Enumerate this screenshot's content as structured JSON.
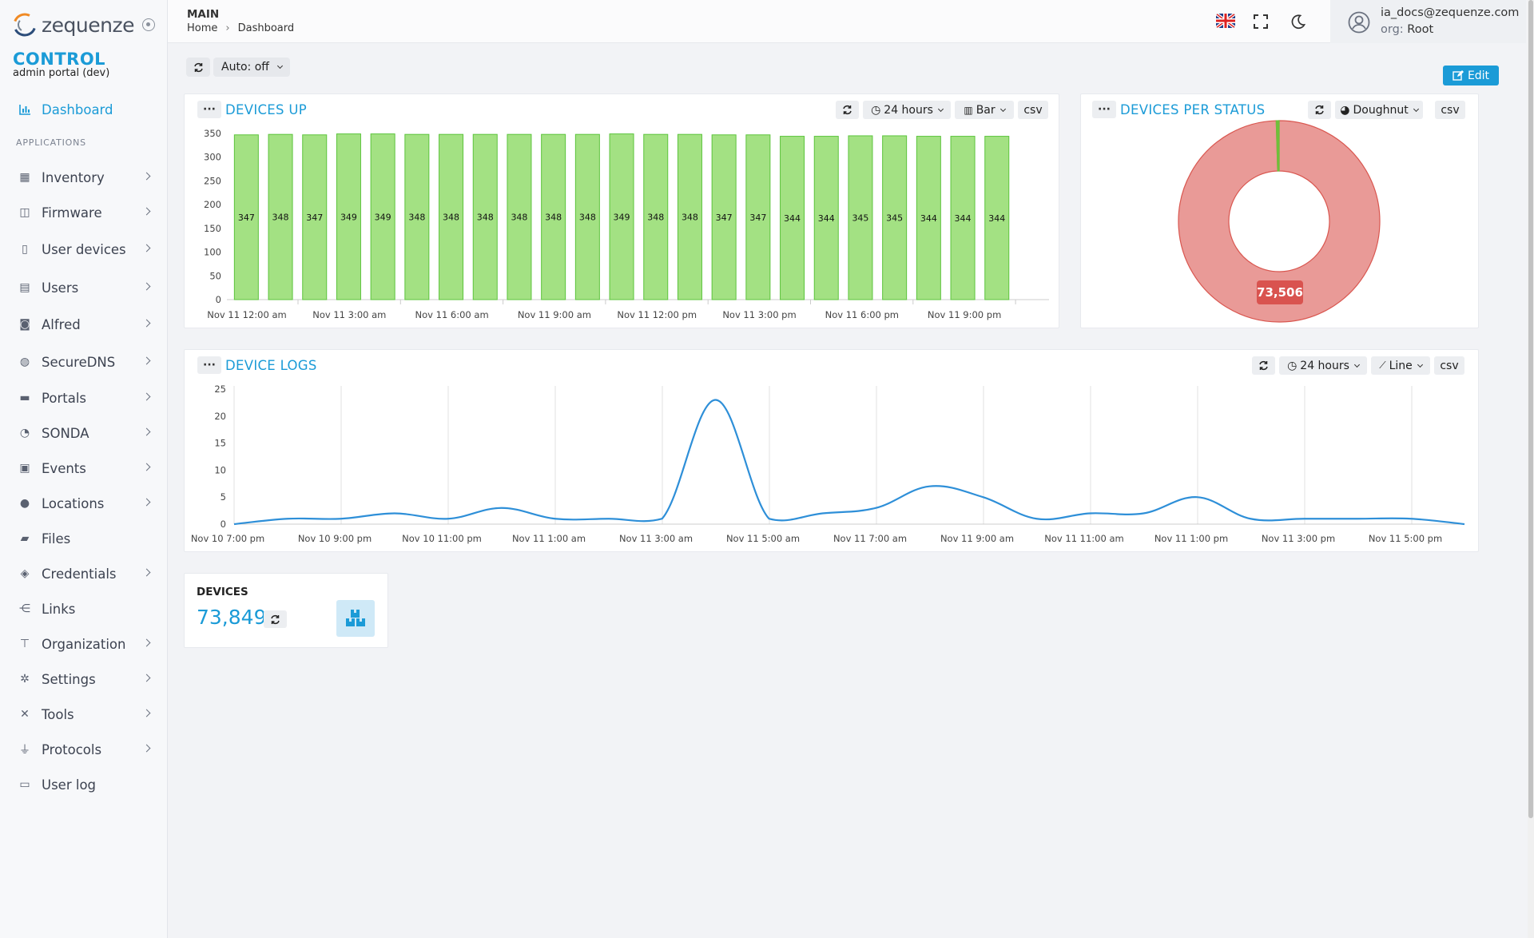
{
  "app": {
    "logo_text": "zequenze",
    "title": "CONTROL",
    "subtitle": "admin portal (dev)"
  },
  "sidebar": {
    "dashboard_label": "Dashboard",
    "section_label": "APPLICATIONS",
    "items": [
      {
        "label": "Inventory",
        "icon": "boxes-icon",
        "chevron": true
      },
      {
        "label": "Firmware",
        "icon": "box-open-icon",
        "chevron": true
      },
      {
        "label": "User devices",
        "icon": "mobile-icon",
        "chevron": true
      },
      {
        "label": "Users",
        "icon": "id-card-icon",
        "chevron": true
      },
      {
        "label": "Alfred",
        "icon": "robot-icon",
        "chevron": true
      },
      {
        "label": "SecureDNS",
        "icon": "globe-icon",
        "chevron": true
      },
      {
        "label": "Portals",
        "icon": "window-icon",
        "chevron": true
      },
      {
        "label": "SONDA",
        "icon": "gauge-icon",
        "chevron": true
      },
      {
        "label": "Events",
        "icon": "calendar-note-icon",
        "chevron": true
      },
      {
        "label": "Locations",
        "icon": "map-marker-icon",
        "chevron": true
      },
      {
        "label": "Files",
        "icon": "folder-icon",
        "chevron": false
      },
      {
        "label": "Credentials",
        "icon": "shield-icon",
        "chevron": true
      },
      {
        "label": "Links",
        "icon": "share-nodes-icon",
        "chevron": false
      },
      {
        "label": "Organization",
        "icon": "sitemap-icon",
        "chevron": true
      },
      {
        "label": "Settings",
        "icon": "gears-icon",
        "chevron": true
      },
      {
        "label": "Tools",
        "icon": "tools-icon",
        "chevron": true
      },
      {
        "label": "Protocols",
        "icon": "plug-icon",
        "chevron": true
      },
      {
        "label": "User log",
        "icon": "calendar-icon",
        "chevron": false
      }
    ]
  },
  "topbar": {
    "section": "MAIN",
    "breadcrumb": [
      "Home",
      "Dashboard"
    ],
    "breadcrumb_sep": "›",
    "user_email": "ia_docs@zequenze.com",
    "org_prefix": "org:",
    "org_name": "Root"
  },
  "toolbar": {
    "auto_label": "Auto: off",
    "edit_label": "Edit"
  },
  "widgets": {
    "devices_up": {
      "title": "DEVICES UP",
      "range": "24 hours",
      "type": "Bar",
      "csv": "csv"
    },
    "devices_status": {
      "title": "DEVICES PER STATUS",
      "type": "Doughnut",
      "csv": "csv"
    },
    "device_logs": {
      "title": "DEVICE LOGS",
      "range": "24 hours",
      "type": "Line",
      "csv": "csv"
    },
    "devices": {
      "label": "DEVICES",
      "value": "73,849"
    }
  },
  "colors": {
    "accent": "#1b9bd7",
    "bar_fill": "#a3e183",
    "bar_stroke": "#5cc43c",
    "doughnut_main": "#e99a97",
    "doughnut_border": "#d95750",
    "doughnut_minor": "#6fbf3a",
    "line": "#2e8fd8",
    "label_bg": "#d9534f"
  },
  "chart_data": [
    {
      "type": "bar",
      "title": "DEVICES UP",
      "x_tick_labels": [
        "Nov 11 12:00 am",
        "Nov 11 3:00 am",
        "Nov 11 6:00 am",
        "Nov 11 9:00 am",
        "Nov 11 12:00 pm",
        "Nov 11 3:00 pm",
        "Nov 11 6:00 pm",
        "Nov 11 9:00 pm"
      ],
      "y_ticks": [
        0,
        50,
        100,
        150,
        200,
        250,
        300,
        350
      ],
      "ylim": [
        0,
        350
      ],
      "values": [
        347,
        348,
        347,
        349,
        349,
        348,
        348,
        348,
        348,
        348,
        348,
        349,
        348,
        348,
        347,
        347,
        344,
        344,
        345,
        345,
        344,
        344,
        344
      ],
      "data_labels": true
    },
    {
      "type": "pie",
      "subtype": "doughnut",
      "title": "DEVICES PER STATUS",
      "slices": [
        {
          "value": 73506,
          "label": "73,506"
        },
        {
          "value": 343
        }
      ]
    },
    {
      "type": "line",
      "title": "DEVICE LOGS",
      "x_tick_labels": [
        "Nov 10 7:00 pm",
        "Nov 10 9:00 pm",
        "Nov 10 11:00 pm",
        "Nov 11 1:00 am",
        "Nov 11 3:00 am",
        "Nov 11 5:00 am",
        "Nov 11 7:00 am",
        "Nov 11 9:00 am",
        "Nov 11 11:00 am",
        "Nov 11 1:00 pm",
        "Nov 11 3:00 pm",
        "Nov 11 5:00 pm"
      ],
      "y_ticks": [
        0,
        5,
        10,
        15,
        20,
        25
      ],
      "ylim": [
        0,
        25
      ],
      "values": [
        0,
        1,
        1,
        2,
        1,
        3,
        1,
        1,
        1,
        23,
        1,
        2,
        3,
        7,
        5,
        1,
        2,
        2,
        5,
        1,
        1,
        1,
        1,
        0
      ]
    }
  ]
}
